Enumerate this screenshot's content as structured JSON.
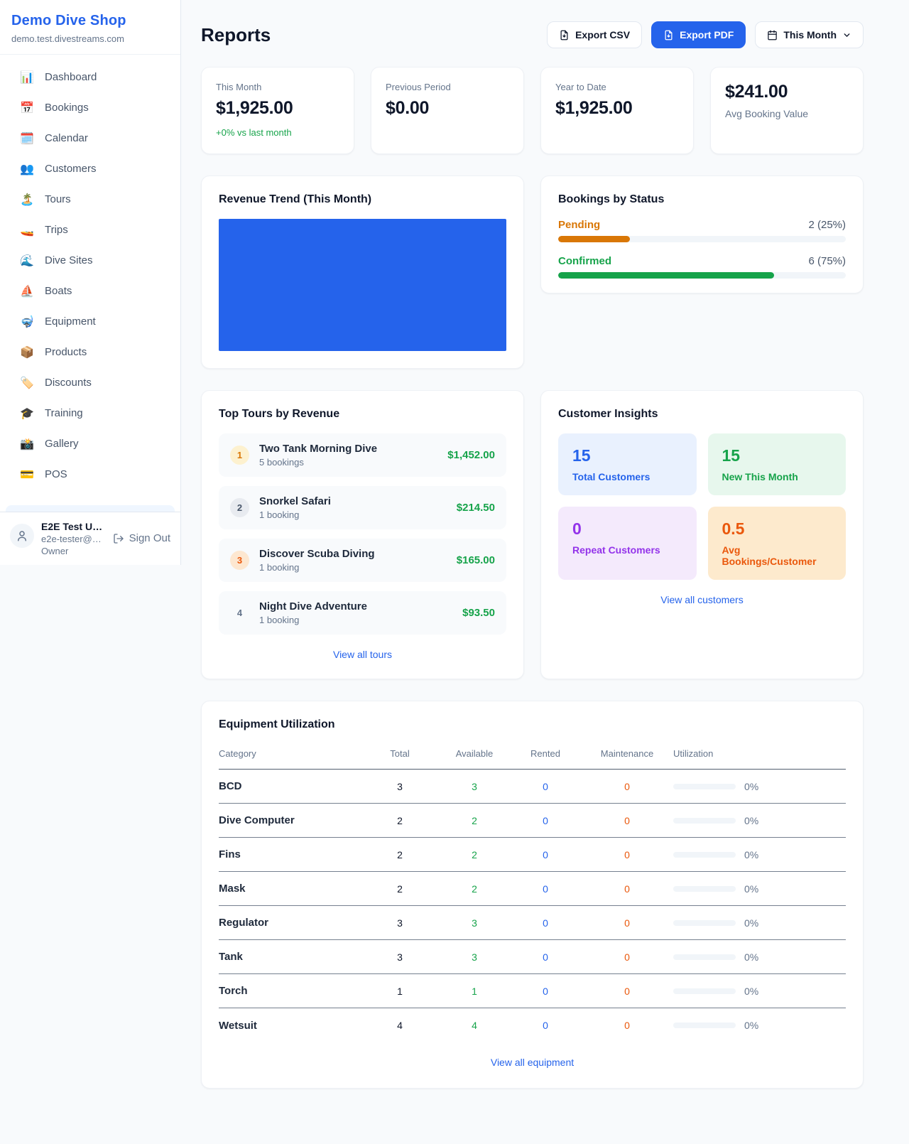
{
  "sidebar": {
    "brand": {
      "name": "Demo Dive Shop",
      "domain": "demo.test.divestreams.com"
    },
    "nav": [
      {
        "id": "dashboard",
        "icon": "📊",
        "label": "Dashboard"
      },
      {
        "id": "bookings",
        "icon": "📅",
        "label": "Bookings"
      },
      {
        "id": "calendar",
        "icon": "🗓️",
        "label": "Calendar"
      },
      {
        "id": "customers",
        "icon": "👥",
        "label": "Customers"
      },
      {
        "id": "tours",
        "icon": "🏝️",
        "label": "Tours"
      },
      {
        "id": "trips",
        "icon": "🚤",
        "label": "Trips"
      },
      {
        "id": "dive-sites",
        "icon": "🌊",
        "label": "Dive Sites"
      },
      {
        "id": "boats",
        "icon": "⛵",
        "label": "Boats"
      },
      {
        "id": "equipment",
        "icon": "🤿",
        "label": "Equipment"
      },
      {
        "id": "products",
        "icon": "📦",
        "label": "Products"
      },
      {
        "id": "discounts",
        "icon": "🏷️",
        "label": "Discounts"
      },
      {
        "id": "training",
        "icon": "🎓",
        "label": "Training"
      },
      {
        "id": "gallery",
        "icon": "📸",
        "label": "Gallery"
      },
      {
        "id": "pos",
        "icon": "💳",
        "label": "POS"
      }
    ],
    "user": {
      "name": "E2E Test U…",
      "email": "e2e-tester@…",
      "role": "Owner",
      "sign_out": "Sign Out"
    }
  },
  "header": {
    "title": "Reports",
    "export_csv_label": "Export CSV",
    "export_pdf_label": "Export PDF",
    "period_label": "This Month"
  },
  "stats": [
    {
      "label": "This Month",
      "value": "$1,925.00",
      "delta": "+0% vs last month"
    },
    {
      "label": "Previous Period",
      "value": "$0.00"
    },
    {
      "label": "Year to Date",
      "value": "$1,925.00"
    },
    {
      "label": "Avg Booking Value",
      "value": "$241.00",
      "value_first": true
    }
  ],
  "revenue_trend": {
    "title": "Revenue Trend (This Month)",
    "bar_color": "#2563eb"
  },
  "bookings_by_status": {
    "title": "Bookings by Status",
    "rows": [
      {
        "label": "Pending",
        "value": "2 (25%)",
        "percent": 25,
        "color": "#d97706"
      },
      {
        "label": "Confirmed",
        "value": "6 (75%)",
        "percent": 75,
        "color": "#16a34a"
      }
    ]
  },
  "top_tours": {
    "title": "Top Tours by Revenue",
    "items": [
      {
        "rank": "1",
        "name": "Two Tank Morning Dive",
        "bookings": "5 bookings",
        "revenue": "$1,452.00"
      },
      {
        "rank": "2",
        "name": "Snorkel Safari",
        "bookings": "1 booking",
        "revenue": "$214.50"
      },
      {
        "rank": "3",
        "name": "Discover Scuba Diving",
        "bookings": "1 booking",
        "revenue": "$165.00"
      },
      {
        "rank": "4",
        "name": "Night Dive Adventure",
        "bookings": "1 booking",
        "revenue": "$93.50"
      }
    ],
    "view_all": "View all tours"
  },
  "customer_insights": {
    "title": "Customer Insights",
    "tiles": [
      {
        "value": "15",
        "label": "Total Customers",
        "theme": "blue"
      },
      {
        "value": "15",
        "label": "New This Month",
        "theme": "green"
      },
      {
        "value": "0",
        "label": "Repeat Customers",
        "theme": "purple"
      },
      {
        "value": "0.5",
        "label": "Avg Bookings/Customer",
        "theme": "orange"
      }
    ],
    "view_all": "View all customers"
  },
  "equipment": {
    "title": "Equipment Utilization",
    "columns": [
      "Category",
      "Total",
      "Available",
      "Rented",
      "Maintenance",
      "Utilization"
    ],
    "rows": [
      {
        "category": "BCD",
        "total": "3",
        "available": "3",
        "rented": "0",
        "maintenance": "0",
        "utilization": "0%",
        "utilization_pct": 0
      },
      {
        "category": "Dive Computer",
        "total": "2",
        "available": "2",
        "rented": "0",
        "maintenance": "0",
        "utilization": "0%",
        "utilization_pct": 0
      },
      {
        "category": "Fins",
        "total": "2",
        "available": "2",
        "rented": "0",
        "maintenance": "0",
        "utilization": "0%",
        "utilization_pct": 0
      },
      {
        "category": "Mask",
        "total": "2",
        "available": "2",
        "rented": "0",
        "maintenance": "0",
        "utilization": "0%",
        "utilization_pct": 0
      },
      {
        "category": "Regulator",
        "total": "3",
        "available": "3",
        "rented": "0",
        "maintenance": "0",
        "utilization": "0%",
        "utilization_pct": 0
      },
      {
        "category": "Tank",
        "total": "3",
        "available": "3",
        "rented": "0",
        "maintenance": "0",
        "utilization": "0%",
        "utilization_pct": 0
      },
      {
        "category": "Torch",
        "total": "1",
        "available": "1",
        "rented": "0",
        "maintenance": "0",
        "utilization": "0%",
        "utilization_pct": 0
      },
      {
        "category": "Wetsuit",
        "total": "4",
        "available": "4",
        "rented": "0",
        "maintenance": "0",
        "utilization": "0%",
        "utilization_pct": 0
      }
    ],
    "view_all": "View all equipment"
  },
  "colors": {
    "accent_blue": "#2563eb",
    "green": "#16a34a",
    "pending_orange": "#d97706",
    "maintenance_orange": "#ea580c",
    "purple": "#9333ea"
  }
}
